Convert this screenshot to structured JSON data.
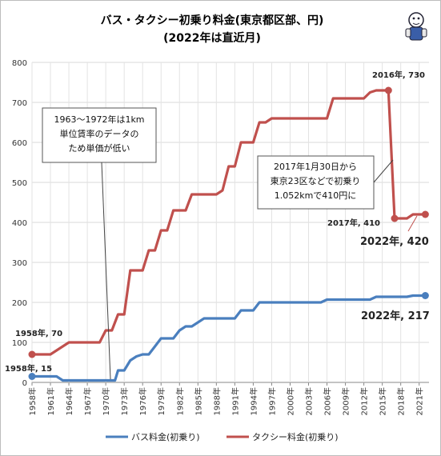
{
  "chart_data": {
    "type": "line",
    "title": "バス・タクシー初乗り料金(東京都区部、円)",
    "subtitle": "(2022年は直近月)",
    "ylim": [
      0,
      800
    ],
    "yticks": [
      0,
      100,
      200,
      300,
      400,
      500,
      600,
      700,
      800
    ],
    "xlim": [
      1958,
      2022
    ],
    "xticks": [
      "1958年",
      "1961年",
      "1964年",
      "1967年",
      "1970年",
      "1973年",
      "1976年",
      "1979年",
      "1982年",
      "1985年",
      "1988年",
      "1991年",
      "1994年",
      "1997年",
      "2000年",
      "2003年",
      "2006年",
      "2009年",
      "2012年",
      "2015年",
      "2018年",
      "2021年"
    ],
    "grid": true,
    "legend_position": "bottom",
    "series": [
      {
        "name": "バス料金(初乗り)",
        "color": "#4a7fbe",
        "points": [
          [
            1958,
            15
          ],
          [
            1962,
            15
          ],
          [
            1963,
            5
          ],
          [
            1970,
            5
          ],
          [
            1971.5,
            5
          ],
          [
            1972,
            30
          ],
          [
            1973,
            30
          ],
          [
            1974,
            55
          ],
          [
            1975,
            65
          ],
          [
            1976,
            70
          ],
          [
            1977,
            70
          ],
          [
            1978,
            90
          ],
          [
            1979,
            110
          ],
          [
            1980,
            110
          ],
          [
            1981,
            110
          ],
          [
            1982,
            130
          ],
          [
            1983,
            140
          ],
          [
            1984,
            140
          ],
          [
            1985,
            150
          ],
          [
            1986,
            160
          ],
          [
            1987,
            160
          ],
          [
            1988,
            160
          ],
          [
            1989,
            160
          ],
          [
            1990,
            160
          ],
          [
            1991,
            160
          ],
          [
            1992,
            180
          ],
          [
            1993,
            180
          ],
          [
            1994,
            180
          ],
          [
            1995,
            200
          ],
          [
            1996,
            200
          ],
          [
            1997,
            200
          ],
          [
            1998,
            200
          ],
          [
            1999,
            200
          ],
          [
            2000,
            200
          ],
          [
            2001,
            200
          ],
          [
            2002,
            200
          ],
          [
            2003,
            200
          ],
          [
            2004,
            200
          ],
          [
            2005,
            200
          ],
          [
            2006,
            207
          ],
          [
            2007,
            207
          ],
          [
            2008,
            207
          ],
          [
            2009,
            207
          ],
          [
            2010,
            207
          ],
          [
            2011,
            207
          ],
          [
            2012,
            207
          ],
          [
            2013,
            207
          ],
          [
            2014,
            214
          ],
          [
            2015,
            214
          ],
          [
            2016,
            214
          ],
          [
            2017,
            214
          ],
          [
            2018,
            214
          ],
          [
            2019,
            214
          ],
          [
            2020,
            217
          ],
          [
            2021,
            217
          ],
          [
            2022,
            217
          ]
        ]
      },
      {
        "name": "タクシー料金(初乗り)",
        "color": "#c0504d",
        "points": [
          [
            1958,
            70
          ],
          [
            1961,
            70
          ],
          [
            1962,
            80
          ],
          [
            1963,
            90
          ],
          [
            1964,
            100
          ],
          [
            1965,
            100
          ],
          [
            1966,
            100
          ],
          [
            1967,
            100
          ],
          [
            1968,
            100
          ],
          [
            1969,
            100
          ],
          [
            1970,
            130
          ],
          [
            1971,
            130
          ],
          [
            1972,
            170
          ],
          [
            1973,
            170
          ],
          [
            1974,
            280
          ],
          [
            1975,
            280
          ],
          [
            1976,
            280
          ],
          [
            1977,
            330
          ],
          [
            1978,
            330
          ],
          [
            1979,
            380
          ],
          [
            1980,
            380
          ],
          [
            1981,
            430
          ],
          [
            1982,
            430
          ],
          [
            1983,
            430
          ],
          [
            1984,
            470
          ],
          [
            1985,
            470
          ],
          [
            1986,
            470
          ],
          [
            1987,
            470
          ],
          [
            1988,
            470
          ],
          [
            1989,
            480
          ],
          [
            1990,
            540
          ],
          [
            1991,
            540
          ],
          [
            1992,
            600
          ],
          [
            1993,
            600
          ],
          [
            1994,
            600
          ],
          [
            1995,
            650
          ],
          [
            1996,
            650
          ],
          [
            1997,
            660
          ],
          [
            1998,
            660
          ],
          [
            1999,
            660
          ],
          [
            2000,
            660
          ],
          [
            2001,
            660
          ],
          [
            2002,
            660
          ],
          [
            2003,
            660
          ],
          [
            2004,
            660
          ],
          [
            2005,
            660
          ],
          [
            2006,
            660
          ],
          [
            2007,
            710
          ],
          [
            2008,
            710
          ],
          [
            2009,
            710
          ],
          [
            2010,
            710
          ],
          [
            2011,
            710
          ],
          [
            2012,
            710
          ],
          [
            2013,
            725
          ],
          [
            2014,
            730
          ],
          [
            2015,
            730
          ],
          [
            2016,
            730
          ],
          [
            2017,
            410
          ],
          [
            2018,
            410
          ],
          [
            2019,
            410
          ],
          [
            2020,
            420
          ],
          [
            2021,
            420
          ],
          [
            2022,
            420
          ]
        ]
      }
    ],
    "markers": [
      {
        "series": 0,
        "x": 1958,
        "y": 15
      },
      {
        "series": 0,
        "x": 2022,
        "y": 217
      },
      {
        "series": 1,
        "x": 1958,
        "y": 70
      },
      {
        "series": 1,
        "x": 2016,
        "y": 730
      },
      {
        "series": 1,
        "x": 2017,
        "y": 410
      },
      {
        "series": 1,
        "x": 2022,
        "y": 420
      }
    ],
    "annotations": {
      "bus_1958": "1958年, 15",
      "taxi_1958": "1958年, 70",
      "taxi_2016": "2016年, 730",
      "taxi_2017": "2017年, 410",
      "taxi_2022": "2022年, 420",
      "bus_2022": "2022年, 217",
      "callout_1": [
        "1963〜1972年は1km",
        "単位賃率のデータの",
        "ため単価が低い"
      ],
      "callout_2": [
        "2017年1月30日から",
        "東京23区などで初乗り",
        "1.052kmで410円に"
      ]
    }
  },
  "mascot": {
    "icon": "mascot-icon"
  }
}
